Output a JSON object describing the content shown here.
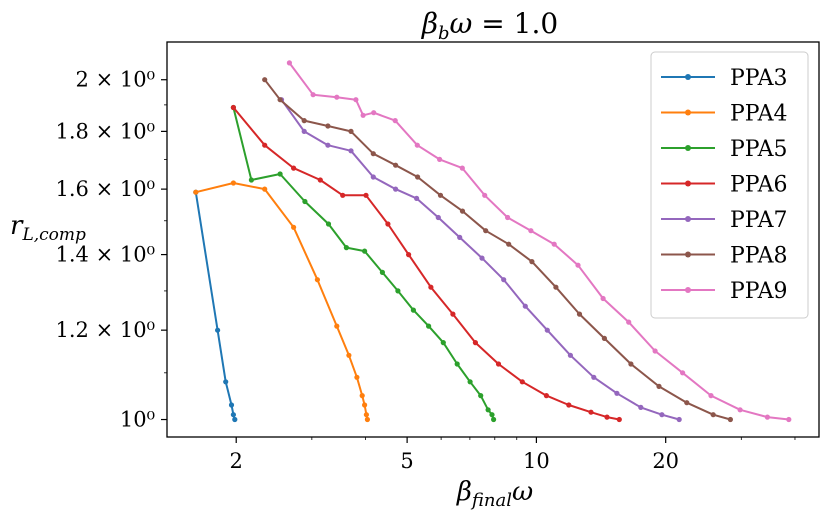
{
  "chart_data": {
    "type": "line",
    "title": "β_b ω = 1.0",
    "xlabel": "β_final ω",
    "ylabel": "r_L,comp",
    "x_scale": "log",
    "y_scale": "log",
    "xlim": [
      1.38,
      45.5
    ],
    "ylim": [
      0.965,
      2.16
    ],
    "x_ticks": [
      {
        "value": 2,
        "label": "2"
      },
      {
        "value": 5,
        "label": "5"
      },
      {
        "value": 10,
        "label": "10"
      },
      {
        "value": 20,
        "label": "20"
      }
    ],
    "y_ticks": [
      {
        "value": 1.0,
        "label": "10⁰"
      },
      {
        "value": 1.2,
        "label": "1.2 × 10⁰"
      },
      {
        "value": 1.4,
        "label": "1.4 × 10⁰"
      },
      {
        "value": 1.6,
        "label": "1.6 × 10⁰"
      },
      {
        "value": 1.8,
        "label": "1.8 × 10⁰"
      },
      {
        "value": 2.0,
        "label": "2 × 10⁰"
      }
    ],
    "grid": false,
    "legend_position": "top-right",
    "series": [
      {
        "name": "PPA3",
        "color": "#1f77b4",
        "x": [
          1.61,
          1.81,
          1.89,
          1.95,
          1.97,
          1.985
        ],
        "y": [
          1.59,
          1.2,
          1.08,
          1.03,
          1.01,
          1.0
        ]
      },
      {
        "name": "PPA4",
        "color": "#ff7f0e",
        "x": [
          1.61,
          1.97,
          2.33,
          2.72,
          3.09,
          3.43,
          3.66,
          3.82,
          3.93,
          3.98,
          4.02,
          4.04
        ],
        "y": [
          1.59,
          1.62,
          1.6,
          1.48,
          1.33,
          1.21,
          1.14,
          1.09,
          1.05,
          1.03,
          1.01,
          1.0
        ]
      },
      {
        "name": "PPA5",
        "color": "#2ca02c",
        "x": [
          1.97,
          2.17,
          2.53,
          2.89,
          3.28,
          3.61,
          3.98,
          4.38,
          4.76,
          5.17,
          5.61,
          6.07,
          6.54,
          7.01,
          7.42,
          7.72,
          7.88,
          7.95
        ],
        "y": [
          1.89,
          1.63,
          1.65,
          1.56,
          1.49,
          1.42,
          1.41,
          1.35,
          1.3,
          1.25,
          1.21,
          1.17,
          1.12,
          1.08,
          1.05,
          1.02,
          1.01,
          1.0
        ],
        "markers_every_point": true
      },
      {
        "name": "PPA6",
        "color": "#d62728",
        "x": [
          1.97,
          2.33,
          2.72,
          3.14,
          3.54,
          4.01,
          4.51,
          5.04,
          5.68,
          6.39,
          7.21,
          8.16,
          9.27,
          10.55,
          11.9,
          13.4,
          14.6,
          15.6
        ],
        "y": [
          1.89,
          1.75,
          1.67,
          1.63,
          1.58,
          1.58,
          1.49,
          1.4,
          1.31,
          1.24,
          1.17,
          1.12,
          1.08,
          1.05,
          1.03,
          1.015,
          1.005,
          1.0
        ]
      },
      {
        "name": "PPA7",
        "color": "#9467bd",
        "x": [
          2.55,
          2.88,
          3.27,
          3.7,
          4.17,
          4.7,
          5.26,
          5.91,
          6.63,
          7.47,
          8.39,
          9.42,
          10.6,
          12.0,
          13.6,
          15.4,
          17.5,
          19.6,
          21.5
        ],
        "y": [
          1.92,
          1.8,
          1.75,
          1.73,
          1.64,
          1.6,
          1.57,
          1.51,
          1.45,
          1.39,
          1.33,
          1.26,
          1.2,
          1.14,
          1.09,
          1.055,
          1.025,
          1.01,
          1.0
        ]
      },
      {
        "name": "PPA8",
        "color": "#8c564b",
        "x": [
          2.33,
          2.53,
          2.88,
          3.27,
          3.7,
          4.17,
          4.7,
          5.29,
          5.98,
          6.73,
          7.62,
          8.62,
          9.76,
          11.1,
          12.6,
          14.4,
          16.6,
          19.3,
          22.4,
          25.8,
          28.3
        ],
        "y": [
          2.0,
          1.92,
          1.84,
          1.82,
          1.8,
          1.72,
          1.68,
          1.64,
          1.58,
          1.53,
          1.47,
          1.43,
          1.38,
          1.31,
          1.24,
          1.18,
          1.12,
          1.07,
          1.035,
          1.01,
          1.0
        ]
      },
      {
        "name": "PPA9",
        "color": "#e377c2",
        "x": [
          2.66,
          3.02,
          3.43,
          3.8,
          3.95,
          4.18,
          4.69,
          5.28,
          5.95,
          6.72,
          7.58,
          8.57,
          9.71,
          11.0,
          12.5,
          14.3,
          16.4,
          18.9,
          21.9,
          25.5,
          29.8,
          34.5,
          38.7
        ],
        "y": [
          2.07,
          1.94,
          1.93,
          1.92,
          1.86,
          1.87,
          1.84,
          1.75,
          1.7,
          1.67,
          1.58,
          1.51,
          1.47,
          1.43,
          1.37,
          1.28,
          1.22,
          1.15,
          1.1,
          1.05,
          1.02,
          1.005,
          1.0
        ]
      }
    ]
  }
}
